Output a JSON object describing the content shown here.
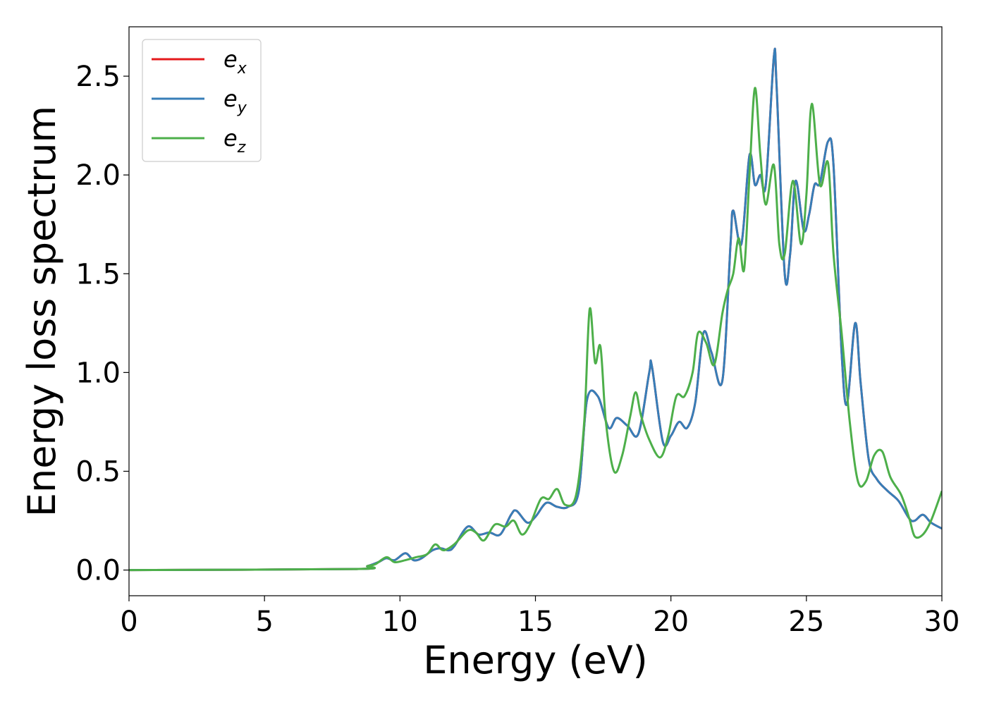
{
  "chart_data": {
    "type": "line",
    "xlabel": "Energy (eV)",
    "ylabel": "Energy loss spectrum",
    "xlim": [
      0,
      30
    ],
    "ylim": [
      -0.13,
      2.75
    ],
    "xticks": [
      0,
      5,
      10,
      15,
      20,
      25,
      30
    ],
    "yticks": [
      0.0,
      0.5,
      1.0,
      1.5,
      2.0,
      2.5
    ],
    "xtick_labels": [
      "0",
      "5",
      "10",
      "15",
      "20",
      "25",
      "30"
    ],
    "ytick_labels": [
      "0.0",
      "0.5",
      "1.0",
      "1.5",
      "2.0",
      "2.5"
    ],
    "grid": false,
    "legend_position": "upper-left",
    "series": [
      {
        "name": "e_x",
        "legend_main": "e",
        "legend_sub": "x",
        "color": "#e41a1c",
        "x": [
          0,
          8.3,
          8.8,
          9.2,
          9.5,
          9.8,
          10.2,
          10.5,
          10.8,
          11.2,
          11.5,
          11.8,
          12.0,
          12.5,
          12.9,
          13.3,
          13.7,
          14.1,
          14.3,
          14.7,
          15.0,
          15.4,
          15.8,
          16.2,
          16.6,
          16.9,
          17.3,
          17.7,
          18.0,
          18.4,
          18.8,
          19.2,
          19.3,
          19.7,
          20.0,
          20.3,
          20.6,
          20.9,
          21.2,
          21.5,
          21.9,
          22.2,
          22.3,
          22.6,
          22.9,
          23.1,
          23.3,
          23.5,
          23.8,
          23.9,
          24.2,
          24.4,
          24.6,
          24.9,
          25.1,
          25.3,
          25.5,
          25.8,
          26.0,
          26.3,
          26.5,
          26.8,
          27.0,
          27.3,
          27.6,
          28.0,
          28.4,
          28.8,
          29.0,
          29.3,
          29.6,
          30.0
        ],
        "y": [
          0.0,
          0.005,
          0.02,
          0.04,
          0.06,
          0.05,
          0.085,
          0.05,
          0.06,
          0.1,
          0.11,
          0.1,
          0.12,
          0.22,
          0.18,
          0.19,
          0.18,
          0.28,
          0.3,
          0.24,
          0.27,
          0.34,
          0.32,
          0.32,
          0.4,
          0.86,
          0.88,
          0.72,
          0.77,
          0.73,
          0.69,
          1.0,
          1.03,
          0.65,
          0.68,
          0.75,
          0.72,
          0.85,
          1.2,
          1.1,
          0.96,
          1.65,
          1.82,
          1.65,
          2.1,
          1.95,
          2.0,
          1.95,
          2.6,
          2.45,
          1.5,
          1.6,
          1.97,
          1.72,
          1.8,
          1.95,
          1.96,
          2.17,
          2.05,
          1.1,
          0.84,
          1.25,
          0.95,
          0.56,
          0.46,
          0.4,
          0.35,
          0.26,
          0.25,
          0.28,
          0.24,
          0.21
        ]
      },
      {
        "name": "e_y",
        "legend_main": "e",
        "legend_sub": "y",
        "color": "#377eb8",
        "x": [
          0,
          8.3,
          8.8,
          9.2,
          9.5,
          9.8,
          10.2,
          10.5,
          10.8,
          11.2,
          11.5,
          11.8,
          12.0,
          12.5,
          12.9,
          13.3,
          13.7,
          14.1,
          14.3,
          14.7,
          15.0,
          15.4,
          15.8,
          16.2,
          16.6,
          16.9,
          17.3,
          17.7,
          18.0,
          18.4,
          18.8,
          19.2,
          19.3,
          19.7,
          20.0,
          20.3,
          20.6,
          20.9,
          21.2,
          21.5,
          21.9,
          22.2,
          22.3,
          22.6,
          22.9,
          23.1,
          23.3,
          23.5,
          23.8,
          23.9,
          24.2,
          24.4,
          24.6,
          24.9,
          25.1,
          25.3,
          25.5,
          25.8,
          26.0,
          26.3,
          26.5,
          26.8,
          27.0,
          27.3,
          27.6,
          28.0,
          28.4,
          28.8,
          29.0,
          29.3,
          29.6,
          30.0
        ],
        "y": [
          0.0,
          0.005,
          0.02,
          0.04,
          0.06,
          0.05,
          0.085,
          0.05,
          0.06,
          0.1,
          0.11,
          0.1,
          0.12,
          0.22,
          0.18,
          0.19,
          0.18,
          0.28,
          0.3,
          0.24,
          0.27,
          0.34,
          0.32,
          0.32,
          0.4,
          0.86,
          0.88,
          0.72,
          0.77,
          0.73,
          0.69,
          1.0,
          1.03,
          0.65,
          0.68,
          0.75,
          0.72,
          0.85,
          1.2,
          1.1,
          0.96,
          1.65,
          1.82,
          1.65,
          2.1,
          1.95,
          2.0,
          1.95,
          2.6,
          2.45,
          1.5,
          1.6,
          1.97,
          1.72,
          1.8,
          1.95,
          1.96,
          2.17,
          2.05,
          1.1,
          0.84,
          1.25,
          0.95,
          0.56,
          0.46,
          0.4,
          0.35,
          0.26,
          0.25,
          0.28,
          0.24,
          0.21
        ]
      },
      {
        "name": "e_z",
        "legend_main": "e",
        "legend_sub": "z",
        "color": "#4daf4a",
        "x": [
          0,
          8.3,
          8.8,
          9.1,
          9.5,
          9.8,
          10.2,
          10.6,
          11.0,
          11.3,
          11.6,
          12.0,
          12.5,
          12.8,
          13.1,
          13.5,
          13.9,
          14.2,
          14.5,
          14.8,
          15.2,
          15.5,
          15.8,
          16.1,
          16.5,
          16.8,
          17.0,
          17.2,
          17.4,
          17.6,
          17.9,
          18.2,
          18.5,
          18.7,
          18.9,
          19.2,
          19.6,
          19.9,
          20.2,
          20.5,
          20.8,
          21.0,
          21.3,
          21.6,
          21.9,
          22.1,
          22.3,
          22.5,
          22.7,
          22.9,
          23.1,
          23.3,
          23.5,
          23.8,
          24.0,
          24.2,
          24.5,
          24.8,
          25.0,
          25.2,
          25.5,
          25.8,
          26.0,
          26.3,
          26.6,
          26.9,
          27.2,
          27.5,
          27.8,
          28.1,
          28.5,
          28.8,
          29.0,
          29.3,
          29.6,
          30.0
        ],
        "y": [
          0.0,
          0.005,
          0.02,
          0.03,
          0.065,
          0.04,
          0.05,
          0.065,
          0.08,
          0.13,
          0.1,
          0.13,
          0.2,
          0.19,
          0.15,
          0.23,
          0.22,
          0.25,
          0.18,
          0.23,
          0.36,
          0.36,
          0.41,
          0.33,
          0.38,
          0.75,
          1.32,
          1.05,
          1.13,
          0.75,
          0.5,
          0.58,
          0.78,
          0.9,
          0.78,
          0.66,
          0.57,
          0.68,
          0.88,
          0.88,
          1.0,
          1.2,
          1.15,
          1.04,
          1.3,
          1.42,
          1.5,
          1.68,
          1.52,
          2.0,
          2.44,
          2.1,
          1.85,
          2.05,
          1.65,
          1.6,
          1.97,
          1.65,
          1.9,
          2.36,
          1.95,
          2.06,
          1.6,
          1.2,
          0.75,
          0.45,
          0.45,
          0.58,
          0.6,
          0.47,
          0.38,
          0.26,
          0.17,
          0.18,
          0.25,
          0.4
        ]
      }
    ]
  }
}
